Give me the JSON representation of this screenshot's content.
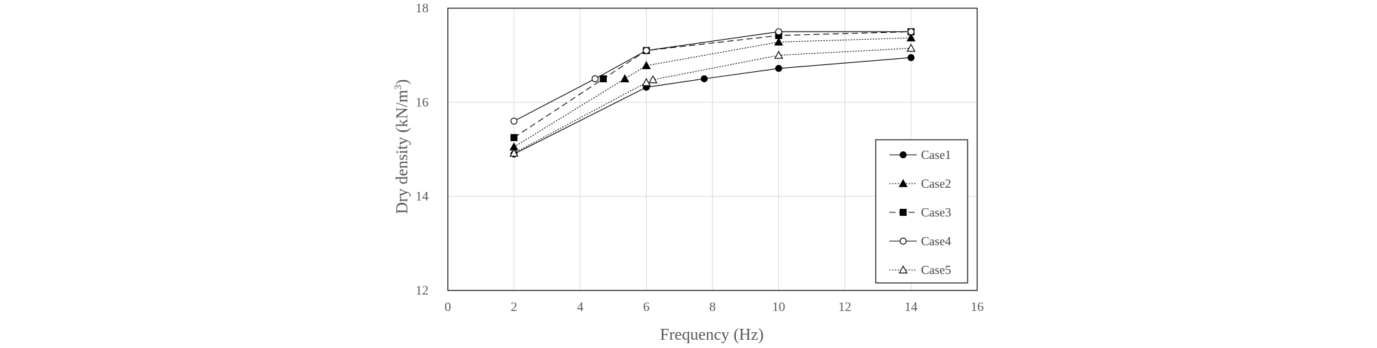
{
  "chart_data": {
    "type": "line",
    "title": "",
    "xlabel": "Frequency  (Hz)",
    "ylabel_main": "Dry density (kN/m",
    "ylabel_sup": "3",
    "ylabel_close": ")",
    "xlim": [
      0,
      16
    ],
    "ylim": [
      12,
      18
    ],
    "xticks": [
      0,
      2,
      4,
      6,
      8,
      10,
      12,
      14,
      16
    ],
    "yticks": [
      12,
      14,
      16,
      18
    ],
    "grid": true,
    "legend_position": "bottom-right",
    "series": [
      {
        "name": "Case1",
        "marker": "filled-circle",
        "dash": "solid",
        "x": [
          2,
          6,
          7.75,
          10,
          14
        ],
        "y": [
          14.9,
          16.32,
          16.5,
          16.72,
          16.95
        ]
      },
      {
        "name": "Case2",
        "marker": "filled-triangle",
        "dash": "dotted",
        "x": [
          2,
          5.35,
          6,
          10,
          14
        ],
        "y": [
          15.05,
          16.5,
          16.78,
          17.28,
          17.37
        ]
      },
      {
        "name": "Case3",
        "marker": "filled-square",
        "dash": "dashed",
        "x": [
          2,
          4.7,
          6,
          10,
          14
        ],
        "y": [
          15.25,
          16.5,
          17.1,
          17.42,
          17.5
        ]
      },
      {
        "name": "Case4",
        "marker": "open-circle",
        "dash": "solid",
        "x": [
          2,
          4.45,
          6,
          10,
          14
        ],
        "y": [
          15.6,
          16.5,
          17.1,
          17.5,
          17.5
        ]
      },
      {
        "name": "Case5",
        "marker": "open-triangle",
        "dash": "dotted",
        "x": [
          2,
          6,
          6.2,
          10,
          14
        ],
        "y": [
          14.92,
          16.42,
          16.48,
          17.0,
          17.15
        ]
      }
    ]
  }
}
